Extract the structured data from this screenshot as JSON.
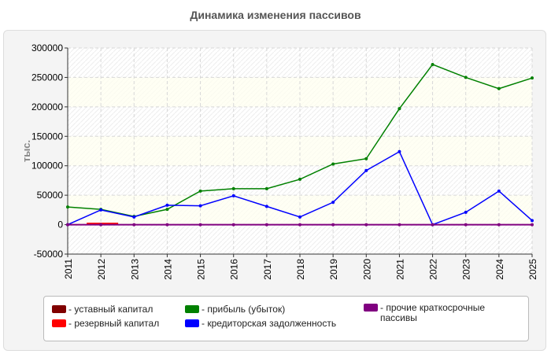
{
  "title": "Динамика изменения пассивов",
  "chart_data": {
    "type": "line",
    "title": "Динамика изменения пассивов",
    "ylabel": "тыс.",
    "xlabel": "",
    "x": [
      "2011",
      "2012",
      "2013",
      "2014",
      "2015",
      "2016",
      "2017",
      "2018",
      "2019",
      "2020",
      "2021",
      "2022",
      "2023",
      "2024",
      "2025"
    ],
    "ylim": [
      -50000,
      300000
    ],
    "yticks": [
      "-50000",
      "0",
      "50000",
      "100000",
      "150000",
      "200000",
      "250000",
      "300000"
    ],
    "grid": true,
    "legend_position": "bottom",
    "series": [
      {
        "name": "- уставный капитал",
        "color": "#800000",
        "values": [
          null,
          null,
          null,
          null,
          null,
          null,
          null,
          null,
          null,
          null,
          null,
          null,
          null,
          null,
          null
        ]
      },
      {
        "name": "- резервный капитал",
        "color": "#ff0000",
        "values": [
          null,
          2000,
          null,
          null,
          null,
          null,
          null,
          null,
          null,
          null,
          null,
          null,
          null,
          null,
          null
        ]
      },
      {
        "name": "- прибыль (убыток)",
        "color": "#008000",
        "values": [
          30000,
          26000,
          14000,
          26000,
          57000,
          61000,
          61000,
          77000,
          103000,
          112000,
          197000,
          272000,
          250000,
          231000,
          249000
        ]
      },
      {
        "name": "- кредиторская задолженность",
        "color": "#0000ff",
        "values": [
          0,
          25000,
          13000,
          33000,
          32000,
          49000,
          31000,
          13000,
          38000,
          92000,
          124000,
          0,
          21000,
          57000,
          7000
        ]
      },
      {
        "name": "- прочие краткосрочные пассивы",
        "color": "#800080",
        "values": [
          0,
          0,
          0,
          0,
          0,
          0,
          0,
          0,
          0,
          0,
          0,
          0,
          0,
          0,
          0
        ]
      }
    ]
  }
}
